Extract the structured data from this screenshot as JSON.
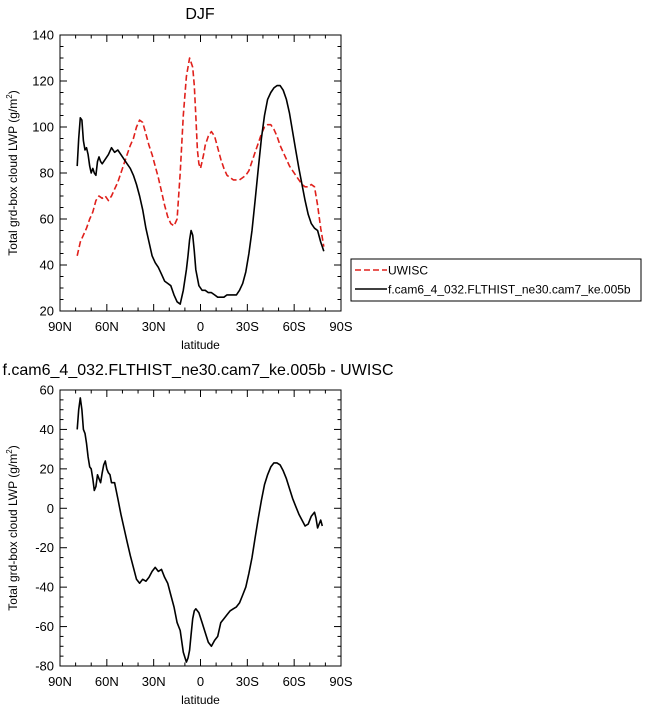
{
  "chart_data": [
    {
      "type": "line",
      "title": "DJF",
      "xlabel": "latitude",
      "ylabel": "Total grd-box cloud LWP (g/m²)",
      "ylabel_main": "Total grd-box cloud LWP (g/m",
      "ylabel_sup": "2",
      "ylabel_tail": ")",
      "xlim": [
        90,
        -90
      ],
      "ylim": [
        20,
        140
      ],
      "x_ticks": [
        90,
        60,
        30,
        0,
        -30,
        -60,
        -90
      ],
      "x_tick_labels": [
        "90N",
        "60N",
        "30N",
        "0",
        "30S",
        "60S",
        "90S"
      ],
      "y_ticks": [
        20,
        40,
        60,
        80,
        100,
        120,
        140
      ],
      "y_tick_labels": [
        "20",
        "40",
        "60",
        "80",
        "100",
        "120",
        "140"
      ],
      "legend_position": "right",
      "series": [
        {
          "name": "UWISC",
          "color": "#e0201b",
          "dash": "dashed",
          "x": [
            79,
            77,
            75,
            73,
            71,
            69,
            67,
            65,
            63,
            61,
            59,
            57,
            55,
            53,
            51,
            49,
            47,
            45,
            43,
            41,
            39,
            37,
            35,
            33,
            31,
            29,
            27,
            25,
            23,
            21,
            19,
            17,
            15,
            13,
            11,
            9,
            7,
            5,
            4,
            3,
            2,
            1,
            0,
            -1,
            -2,
            -3,
            -5,
            -7,
            -9,
            -11,
            -13,
            -15,
            -17,
            -19,
            -21,
            -23,
            -25,
            -27,
            -29,
            -31,
            -33,
            -35,
            -37,
            -39,
            -41,
            -43,
            -45,
            -47,
            -49,
            -51,
            -53,
            -55,
            -57,
            -59,
            -61,
            -63,
            -65,
            -67,
            -69,
            -71,
            -73,
            -75,
            -77,
            -79
          ],
          "values": [
            44,
            50,
            53,
            56,
            60,
            63,
            68,
            70,
            69,
            70,
            68,
            70,
            73,
            76,
            80,
            84,
            88,
            92,
            95,
            100,
            103,
            102,
            97,
            92,
            88,
            83,
            78,
            72,
            66,
            61,
            58,
            57,
            60,
            80,
            105,
            122,
            130,
            126,
            118,
            105,
            90,
            84,
            82,
            85,
            88,
            92,
            96,
            98,
            96,
            91,
            86,
            82,
            79,
            78,
            77,
            77,
            77,
            78,
            79,
            81,
            85,
            89,
            93,
            97,
            100,
            101,
            101,
            99,
            96,
            92,
            89,
            86,
            83,
            81,
            79,
            77,
            75,
            74,
            74,
            75,
            74,
            66,
            56,
            48
          ]
        },
        {
          "name": "f.cam6_4_032.FLTHIST_ne30.cam7_ke.005b",
          "color": "#000000",
          "dash": "solid",
          "x": [
            79,
            78,
            77,
            76,
            75,
            74,
            73,
            72,
            71,
            70,
            69,
            68,
            67,
            66,
            65,
            64,
            63,
            61,
            59,
            57,
            55,
            53,
            51,
            49,
            47,
            45,
            43,
            41,
            39,
            37,
            35,
            33,
            31,
            29,
            27,
            25,
            23,
            21,
            19,
            17,
            15,
            13,
            11,
            9,
            8,
            7,
            6,
            5,
            4,
            3,
            1,
            -1,
            -3,
            -5,
            -7,
            -9,
            -11,
            -13,
            -15,
            -17,
            -19,
            -21,
            -23,
            -25,
            -27,
            -29,
            -31,
            -33,
            -35,
            -37,
            -39,
            -41,
            -43,
            -45,
            -47,
            -49,
            -51,
            -53,
            -55,
            -57,
            -59,
            -61,
            -63,
            -65,
            -67,
            -69,
            -71,
            -73,
            -75,
            -77,
            -78,
            -79
          ],
          "values": [
            83,
            95,
            104,
            103,
            94,
            90,
            91,
            88,
            83,
            80,
            82,
            80,
            79,
            85,
            87,
            85,
            84,
            86,
            88,
            91,
            89,
            90,
            88,
            86,
            84,
            82,
            79,
            75,
            70,
            64,
            56,
            50,
            44,
            41,
            39,
            36,
            33,
            32,
            31,
            27,
            24,
            23,
            29,
            38,
            44,
            51,
            55,
            53,
            46,
            38,
            31,
            29,
            29,
            28,
            28,
            27,
            26,
            26,
            26,
            27,
            27,
            27,
            27,
            29,
            32,
            37,
            45,
            55,
            68,
            82,
            95,
            105,
            112,
            115,
            117,
            118,
            118,
            116,
            112,
            106,
            98,
            90,
            82,
            75,
            68,
            62,
            58,
            56,
            55,
            50,
            48,
            46
          ]
        }
      ]
    },
    {
      "type": "line",
      "title": "f.cam6_4_032.FLTHIST_ne30.cam7_ke.005b - UWISC",
      "xlabel": "latitude",
      "ylabel": "Total grd-box cloud LWP (g/m²)",
      "ylabel_main": "Total grd-box cloud LWP (g/m",
      "ylabel_sup": "2",
      "ylabel_tail": ")",
      "xlim": [
        90,
        -90
      ],
      "ylim": [
        -80,
        60
      ],
      "x_ticks": [
        90,
        60,
        30,
        0,
        -30,
        -60,
        -90
      ],
      "x_tick_labels": [
        "90N",
        "60N",
        "30N",
        "0",
        "30S",
        "60S",
        "90S"
      ],
      "y_ticks": [
        -80,
        -60,
        -40,
        -20,
        0,
        20,
        40,
        60
      ],
      "y_tick_labels": [
        "-80",
        "-60",
        "-40",
        "-20",
        "0",
        "20",
        "40",
        "60"
      ],
      "series": [
        {
          "color": "#000000",
          "dash": "solid",
          "x": [
            79,
            78,
            77,
            76,
            75,
            74,
            73,
            72,
            71,
            70,
            69,
            68,
            67,
            66,
            65,
            64,
            63,
            62,
            61,
            60,
            59,
            58,
            57,
            56,
            55,
            53,
            51,
            49,
            47,
            45,
            43,
            41,
            39,
            37,
            35,
            33,
            31,
            29,
            27,
            25,
            23,
            21,
            19,
            17,
            15,
            13,
            11,
            9,
            8,
            7,
            6,
            5,
            4,
            3,
            1,
            -1,
            -3,
            -5,
            -7,
            -9,
            -11,
            -13,
            -15,
            -17,
            -19,
            -21,
            -23,
            -25,
            -27,
            -29,
            -31,
            -33,
            -35,
            -37,
            -39,
            -41,
            -43,
            -45,
            -47,
            -49,
            -51,
            -53,
            -55,
            -57,
            -59,
            -61,
            -63,
            -65,
            -67,
            -69,
            -71,
            -73,
            -74,
            -75,
            -76,
            -77,
            -78
          ],
          "values": [
            40,
            50,
            56,
            50,
            40,
            38,
            33,
            26,
            21,
            20,
            15,
            9,
            11,
            17,
            15,
            13,
            18,
            22,
            24,
            20,
            18,
            17,
            13,
            13,
            13,
            5,
            -3,
            -10,
            -17,
            -24,
            -30,
            -36,
            -38,
            -36,
            -37,
            -35,
            -32,
            -30,
            -32,
            -31,
            -35,
            -38,
            -44,
            -50,
            -58,
            -62,
            -73,
            -78,
            -76,
            -72,
            -64,
            -56,
            -52,
            -51,
            -53,
            -58,
            -63,
            -68,
            -70,
            -67,
            -65,
            -58,
            -56,
            -54,
            -52,
            -51,
            -50,
            -48,
            -44,
            -40,
            -33,
            -25,
            -15,
            -5,
            4,
            12,
            17,
            21,
            23,
            23,
            22,
            19,
            15,
            10,
            5,
            1,
            -3,
            -6,
            -9,
            -8,
            -4,
            -2,
            -5,
            -10,
            -8,
            -6,
            -9
          ]
        }
      ]
    }
  ]
}
